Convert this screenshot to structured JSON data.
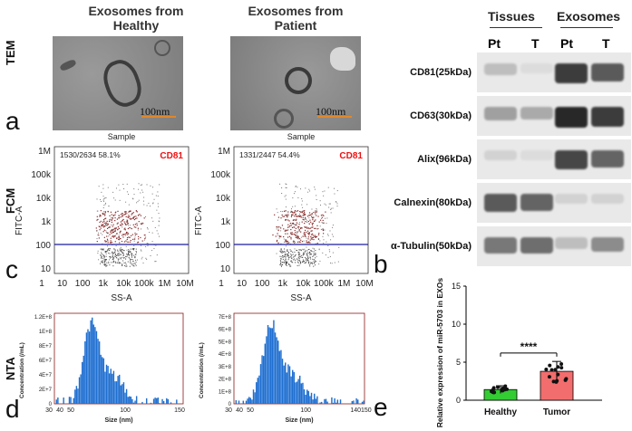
{
  "tem": {
    "healthy_title": "Exosomes from Healthy",
    "patient_title": "Exosomes from Patient",
    "row_label": "TEM",
    "scale": "100nm"
  },
  "fcm": {
    "row_label": "FCM",
    "plots": [
      {
        "gate": "1530/2634  58.1%",
        "marker": "CD81",
        "title": "Sample",
        "xlabel": "SS-A",
        "ylabel": "FITC-A"
      },
      {
        "gate": "1331/2447  54.4%",
        "marker": "CD81",
        "title": "Sample",
        "xlabel": "SS-A",
        "ylabel": "FITC-A"
      }
    ],
    "x_ticks": [
      "1",
      "10",
      "100",
      "1k",
      "10k",
      "100k",
      "1M",
      "10M"
    ],
    "y_ticks": [
      "1M",
      "100k",
      "10k",
      "1k",
      "100",
      "10"
    ]
  },
  "nta": {
    "row_label": "NTA",
    "plots": [
      {
        "xlabel": "Size (nm)",
        "ylabel": "Concentration (/mL)",
        "y_ticks": [
          "1.2E+8",
          "1E+8",
          "8E+7",
          "6E+7",
          "4E+7",
          "2E+7",
          "0"
        ],
        "x_ticks": [
          "30",
          "40",
          "50",
          "100",
          "150"
        ]
      },
      {
        "xlabel": "Size (nm)",
        "ylabel": "Concentration (/mL)",
        "y_ticks": [
          "7E+8",
          "6E+8",
          "5E+8",
          "4E+8",
          "3E+8",
          "2E+8",
          "1E+8",
          "0"
        ],
        "x_ticks": [
          "30",
          "40",
          "50",
          "100",
          "140150"
        ]
      }
    ]
  },
  "western": {
    "group_tissues": "Tissues",
    "group_exosomes": "Exosomes",
    "lanes": [
      "Pt",
      "T",
      "Pt",
      "T"
    ],
    "bands": [
      "CD81(25kDa)",
      "CD63(30kDa)",
      "Alix(96kDa)",
      "Calnexin(80kDa)",
      "α-Tubulin(50kDa)"
    ]
  },
  "panels": {
    "a": "a",
    "b": "b",
    "c": "c",
    "d": "d",
    "e": "e"
  },
  "chart_data": {
    "type": "bar",
    "categories": [
      "Healthy",
      "Tumor"
    ],
    "values": [
      1.4,
      3.8
    ],
    "errors": [
      0.5,
      1.3
    ],
    "colors": [
      "#33cc33",
      "#f26d6d"
    ],
    "ylabel": "Relative expression of miR-5703 in EXOs (/U6)",
    "ylim": [
      0,
      15
    ],
    "y_ticks": [
      "0",
      "5",
      "10",
      "15"
    ],
    "significance": "****"
  }
}
